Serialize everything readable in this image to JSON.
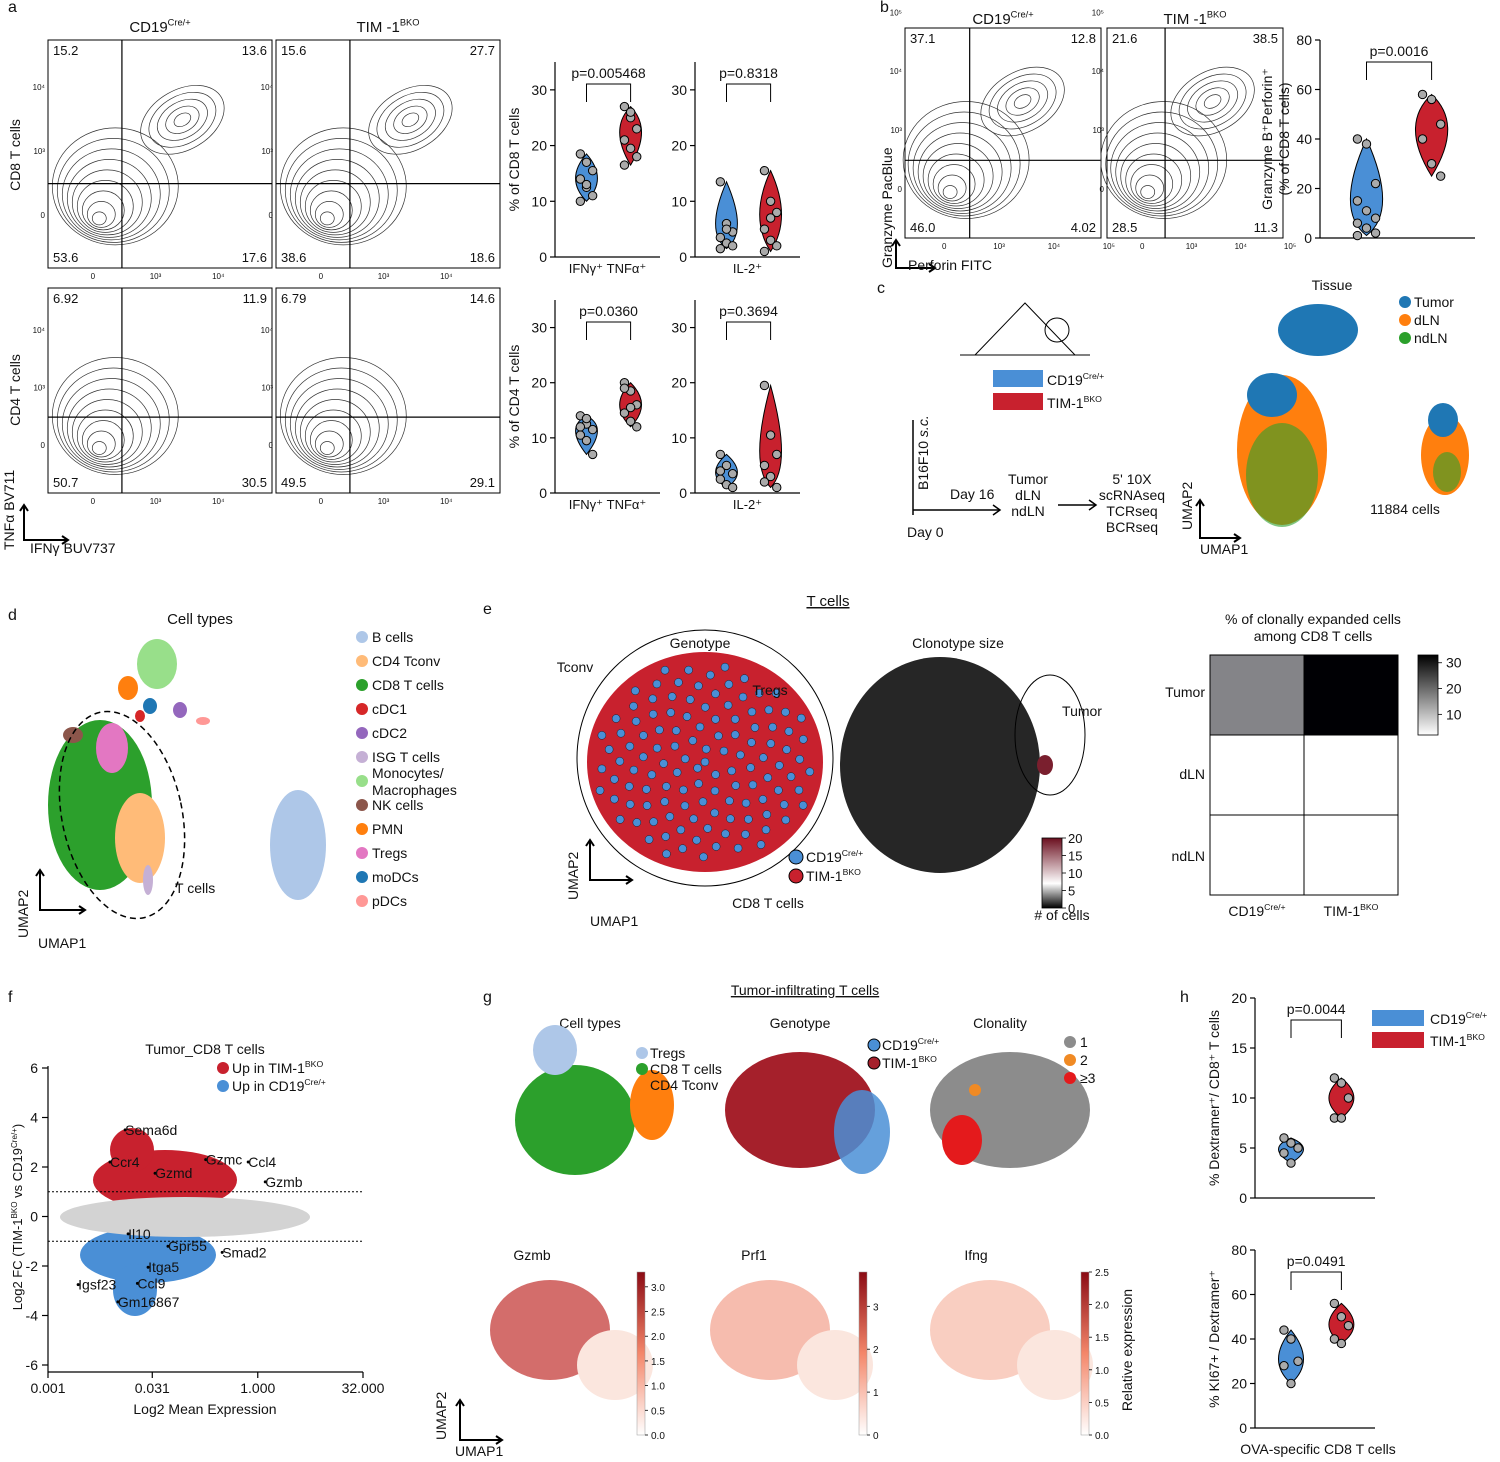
{
  "panel_labels": [
    "a",
    "b",
    "c",
    "d",
    "e",
    "f",
    "g",
    "h"
  ],
  "groups": [
    {
      "name": "CD19",
      "sup": "Cre/+",
      "color": "#4a8fd6"
    },
    {
      "name": "TIM-1",
      "sup": "BKO",
      "color": "#c8212e"
    }
  ],
  "a": {
    "col_titles": [
      {
        "text": "CD19",
        "sup": "Cre/+"
      },
      {
        "text": "TIM -1",
        "sup": "BKO"
      }
    ],
    "row_labels": [
      "CD8 T cells",
      "CD4 T cells"
    ],
    "x_axis": "IFNγ BUV737",
    "y_axis": "TNFα BV711",
    "axis_ticks": [
      "0",
      "10³",
      "10⁴"
    ],
    "quadrants": [
      [
        "15.2",
        "13.6",
        "53.6",
        "17.6"
      ],
      [
        "15.6",
        "27.7",
        "38.6",
        "18.6"
      ],
      [
        "6.92",
        "11.9",
        "50.7",
        "30.5"
      ],
      [
        "6.79",
        "14.6",
        "49.5",
        "29.1"
      ]
    ],
    "violins": [
      {
        "ylabel": "% of CD8 T cells",
        "category": "IFNγ⁺ TNFα⁺",
        "p": "p=0.005468",
        "ylim": [
          0,
          35
        ],
        "yticks": [
          0,
          10,
          20,
          30
        ],
        "values": [
          [
            18.5,
            17,
            15.5,
            14,
            12.5,
            11,
            10,
            13
          ],
          [
            27,
            25,
            23,
            21,
            19.5,
            18,
            16.5,
            26
          ]
        ]
      },
      {
        "category": "IL-2⁺",
        "p": "p=0.8318",
        "ylim": [
          0,
          35
        ],
        "yticks": [
          0,
          10,
          20,
          30
        ],
        "values": [
          [
            13.5,
            6,
            4.5,
            3.5,
            2.5,
            2,
            1.5,
            5
          ],
          [
            15.5,
            10,
            8,
            5,
            3,
            2,
            1,
            7
          ]
        ]
      },
      {
        "ylabel": "% of CD4 T cells",
        "category": "IFNγ⁺ TNFα⁺",
        "p": "p=0.0360",
        "ylim": [
          0,
          35
        ],
        "yticks": [
          0,
          10,
          20,
          30
        ],
        "values": [
          [
            14,
            12.5,
            11.5,
            10.5,
            9.5,
            7,
            12,
            13.5
          ],
          [
            20,
            18.5,
            16,
            14.5,
            13,
            12,
            19,
            15.5
          ]
        ]
      },
      {
        "category": "IL-2⁺",
        "p": "p=0.3694",
        "ylim": [
          0,
          35
        ],
        "yticks": [
          0,
          10,
          20,
          30
        ],
        "values": [
          [
            7,
            5,
            3.5,
            2.5,
            1.5,
            1,
            4
          ],
          [
            19.5,
            10.5,
            7,
            5,
            3,
            1,
            2
          ]
        ]
      }
    ]
  },
  "b": {
    "col_titles": [
      {
        "text": "CD19",
        "sup": "Cre/+"
      },
      {
        "text": "TIM -1",
        "sup": "BKO"
      }
    ],
    "x_axis": "Perforin FITC",
    "y_axis": "Granzyme  PacBlue",
    "axis_ticks": [
      "0",
      "10³",
      "10⁴",
      "10⁵"
    ],
    "quadrants": [
      [
        "37.1",
        "12.8",
        "46.0",
        "4.02"
      ],
      [
        "21.6",
        "38.5",
        "28.5",
        "11.3"
      ]
    ],
    "violin": {
      "ylabel": [
        "Granzyme B⁺Perforin⁺",
        "(% of CD8 T cells)"
      ],
      "p": "p=0.0016",
      "ylim": [
        0,
        80
      ],
      "yticks": [
        0,
        20,
        40,
        60,
        80
      ],
      "values": [
        [
          40,
          38,
          22,
          15,
          11,
          8,
          6,
          4,
          2,
          1
        ],
        [
          58,
          56,
          46,
          40,
          30,
          25
        ]
      ]
    }
  },
  "c": {
    "legend": [
      {
        "text": "CD19",
        "sup": "Cre/+"
      },
      {
        "text": "TIM-1",
        "sup": "BKO"
      }
    ],
    "injection": [
      "B16F10 ",
      "s.c."
    ],
    "day0": "Day 0",
    "day16": "Day 16",
    "tissues_collected": [
      "Tumor",
      "dLN",
      "ndLN"
    ],
    "assays": [
      "5' 10X",
      "scRNAseq",
      "TCRseq",
      "BCRseq"
    ],
    "umap_title": "Tissue",
    "tissue_legend": [
      {
        "name": "Tumor",
        "color": "#1f77b4"
      },
      {
        "name": "dLN",
        "color": "#ff7f0e"
      },
      {
        "name": "ndLN",
        "color": "#2ca02c"
      }
    ],
    "cell_count": "11884 cells",
    "umap_x": "UMAP1",
    "umap_y": "UMAP2"
  },
  "d": {
    "title": "Cell types",
    "legend": [
      {
        "name": "B cells",
        "color": "#aec7e8"
      },
      {
        "name": "CD4 Tconv",
        "color": "#ffbb78"
      },
      {
        "name": "CD8 T cells",
        "color": "#2ca02c"
      },
      {
        "name": "cDC1",
        "color": "#d62728"
      },
      {
        "name": "cDC2",
        "color": "#9467bd"
      },
      {
        "name": "ISG T cells",
        "color": "#c5b0d5"
      },
      {
        "name": [
          "Monocytes/",
          "Macrophages"
        ],
        "color": "#98df8a"
      },
      {
        "name": "NK cells",
        "color": "#8c564b"
      },
      {
        "name": "PMN",
        "color": "#ff7f0e"
      },
      {
        "name": "Tregs",
        "color": "#e377c2"
      },
      {
        "name": "moDCs",
        "color": "#1f77b4"
      },
      {
        "name": "pDCs",
        "color": "#ff9896"
      }
    ],
    "t_cells": "T cells",
    "umap_x": "UMAP1",
    "umap_y": "UMAP2"
  },
  "e": {
    "title": "T cells",
    "genotype_title": "Genotype",
    "clonotype_title": "Clonotype size",
    "regions": [
      "Tconv",
      "Tregs",
      "CD8 T cells",
      "Tumor"
    ],
    "genotype_legend": [
      {
        "text": "CD19",
        "sup": "Cre/+"
      },
      {
        "text": "TIM-1",
        "sup": "BKO"
      }
    ],
    "clonotype_bar": {
      "lim": [
        0,
        20
      ],
      "ticks": [
        0,
        5,
        10,
        15,
        20
      ],
      "label": "# of cells"
    },
    "umap_x": "UMAP1",
    "umap_y": "UMAP2",
    "heatmap": {
      "title": [
        "% of clonally expanded cells",
        "among CD8 T cells"
      ],
      "rows": [
        "Tumor",
        "dLN",
        "ndLN"
      ],
      "cols": [
        {
          "text": "CD19",
          "sup": "Cre/+"
        },
        {
          "text": "TIM-1",
          "sup": "BKO"
        }
      ],
      "values": [
        [
          17,
          33
        ],
        [
          1,
          1.5
        ],
        [
          1,
          1.5
        ]
      ],
      "lim": [
        2,
        33
      ],
      "ticks": [
        10,
        20,
        30
      ]
    }
  },
  "f": {
    "title": "Tumor_CD8 T cells",
    "legend": [
      {
        "text": "Up in TIM-1",
        "sup": "BKO"
      },
      {
        "text": "Up in CD19",
        "sup": "Cre/+"
      }
    ],
    "xlabel": "Log2 Mean Expression",
    "ylabel": [
      {
        "text": "Log2 FC (TIM-1"
      },
      {
        "sup": "BKO"
      },
      {
        "text": " vs CD19"
      },
      {
        "sup": "Cre/+"
      },
      {
        "text": ")"
      }
    ],
    "xlim": [
      0.001,
      32
    ],
    "xticks": [
      0.001,
      0.031,
      {
        "value": 1,
        "label": "1.000"
      },
      {
        "value": 32,
        "label": "32.000"
      }
    ],
    "ylim": [
      -6,
      6
    ],
    "yticks": [
      -6,
      -4,
      -2,
      0,
      2,
      4,
      6
    ],
    "thresholds": [
      1,
      -1
    ],
    "genes": [
      {
        "name": "Sema6d",
        "x": 0.0127,
        "y": 3.5
      },
      {
        "name": "Ccr4",
        "x": 0.0077,
        "y": 2.2
      },
      {
        "name": "Gzmd",
        "x": 0.034,
        "y": 1.75
      },
      {
        "name": "Gzmc",
        "x": 0.18,
        "y": 2.3
      },
      {
        "name": "Ccl4",
        "x": 0.73,
        "y": 2.2
      },
      {
        "name": "Gzmb",
        "x": 1.28,
        "y": 1.4
      },
      {
        "name": "Il10",
        "x": 0.014,
        "y": -0.7
      },
      {
        "name": "Gpr55",
        "x": 0.052,
        "y": -1.2
      },
      {
        "name": "Smad2",
        "x": 0.31,
        "y": -1.45
      },
      {
        "name": "Itga5",
        "x": 0.027,
        "y": -2.05
      },
      {
        "name": "Ccl9",
        "x": 0.019,
        "y": -2.7
      },
      {
        "name": "Igsf23",
        "x": 0.0027,
        "y": -2.75
      },
      {
        "name": "Gm16867",
        "x": 0.01,
        "y": -3.45
      }
    ]
  },
  "g": {
    "title": "Tumor-infiltrating T cells",
    "subtitles": [
      "Cell types",
      "Genotype",
      "Clonality"
    ],
    "celltype_legend": [
      {
        "name": "Tregs",
        "color": "#aec7e8"
      },
      {
        "name": "CD8 T cells",
        "color": "#2ca02c"
      },
      {
        "name": "CD4 Tconv",
        "color": "#ff7f0e"
      }
    ],
    "genotype_legend": [
      {
        "text": "CD19",
        "sup": "Cre/+"
      },
      {
        "text": "TIM-1",
        "sup": "BKO"
      }
    ],
    "clonality_legend": [
      {
        "name": "1",
        "color": "#8c8c8c"
      },
      {
        "name": "2",
        "color": "#f08a24"
      },
      {
        "name": "≥3",
        "color": "#e41a1c"
      }
    ],
    "genes": [
      {
        "name": "Gzmb",
        "lim": [
          0,
          3.3
        ],
        "ticks": [
          {
            "value": 0,
            "label": "0.0"
          },
          {
            "value": 0.5,
            "label": "0.5"
          },
          {
            "value": 1,
            "label": "1.0"
          },
          {
            "value": 1.5,
            "label": "1.5"
          },
          {
            "value": 2,
            "label": "2.0"
          },
          {
            "value": 2.5,
            "label": "2.5"
          },
          {
            "value": 3,
            "label": "3.0"
          }
        ]
      },
      {
        "name": "Prf1",
        "lim": [
          0,
          3.8
        ],
        "ticks": [
          0,
          1,
          2,
          3
        ]
      },
      {
        "name": "Ifng",
        "lim": [
          0,
          2.5
        ],
        "ticks": [
          {
            "value": 0,
            "label": "0.0"
          },
          {
            "value": 0.5,
            "label": "0.5"
          },
          {
            "value": 1,
            "label": "1.0"
          },
          {
            "value": 1.5,
            "label": "1.5"
          },
          {
            "value": 2,
            "label": "2.0"
          },
          {
            "value": 2.5,
            "label": "2.5"
          }
        ]
      }
    ],
    "colorbar_label": "Relative expression",
    "umap_x": "UMAP1",
    "umap_y": "UMAP2"
  },
  "h": {
    "legend": [
      {
        "text": "CD19",
        "sup": "Cre/+"
      },
      {
        "text": "TIM-1",
        "sup": "BKO"
      }
    ],
    "violins": [
      {
        "ylabel": "% Dextramer⁺/ CD8⁺ T cells",
        "p": "p=0.0044",
        "ylim": [
          0,
          20
        ],
        "yticks": [
          0,
          5,
          10,
          15,
          20
        ],
        "values": [
          [
            6,
            5.5,
            5,
            4.5,
            3.5
          ],
          [
            12,
            11.5,
            10,
            8,
            8
          ]
        ]
      },
      {
        "ylabel": "% KI67+ / Dextramer⁺",
        "p": "p=0.0491",
        "ylim": [
          0,
          80
        ],
        "yticks": [
          0,
          20,
          40,
          60,
          80
        ],
        "values": [
          [
            44,
            40,
            30,
            28,
            20
          ],
          [
            56,
            50,
            46,
            40,
            38
          ]
        ]
      }
    ],
    "xlabel": "OVA-specific CD8 T cells"
  }
}
